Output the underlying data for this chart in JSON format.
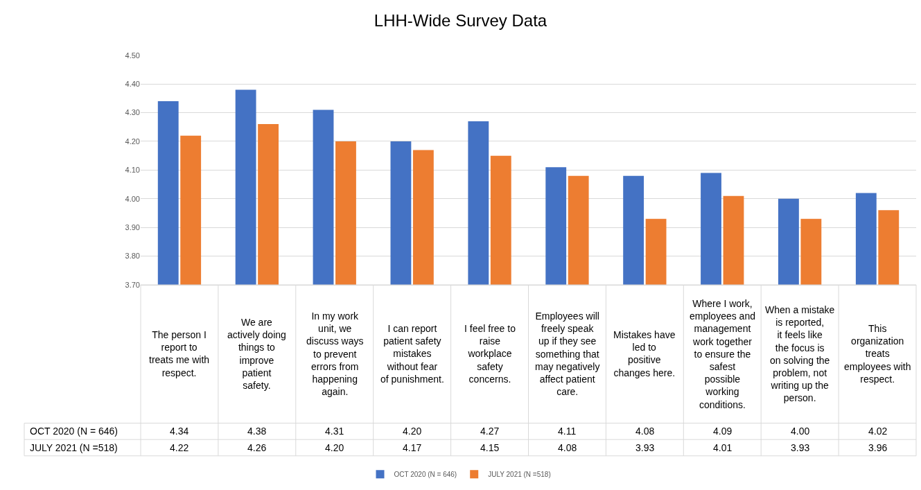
{
  "chart_data": {
    "type": "bar",
    "title": "LHH-Wide Survey Data",
    "categories": [
      "The person I report to treats me with respect.",
      "We are actively doing things to improve patient safety.",
      "In my work unit, we discuss ways to prevent errors from happening again.",
      "I can report patient safety mistakes without fear of punishment.",
      "I feel free to raise workplace safety concerns.",
      "Employees will freely speak up if they see something that may negatively affect patient care.",
      "Mistakes have led to positive changes here.",
      "Where I work, employees and management work together to ensure the safest possible working conditions.",
      "When a mistake is reported, it feels like the focus is on solving the problem, not writing up the person.",
      "This organization treats employees with respect."
    ],
    "series": [
      {
        "name": "OCT 2020 (N = 646)",
        "color": "#4472c4",
        "values": [
          4.34,
          4.38,
          4.31,
          4.2,
          4.27,
          4.11,
          4.08,
          4.09,
          4.0,
          4.02
        ],
        "value_labels": [
          "4.34",
          "4.38",
          "4.31",
          "4.20",
          "4.27",
          "4.11",
          "4.08",
          "4.09",
          "4.00",
          "4.02"
        ]
      },
      {
        "name": "JULY 2021 (N =518)",
        "color": "#ed7d31",
        "values": [
          4.22,
          4.26,
          4.2,
          4.17,
          4.15,
          4.08,
          3.93,
          4.01,
          3.93,
          3.96
        ],
        "value_labels": [
          "4.22",
          "4.26",
          "4.20",
          "4.17",
          "4.15",
          "4.08",
          "3.93",
          "4.01",
          "3.93",
          "3.96"
        ]
      }
    ],
    "ylim": [
      3.7,
      4.5
    ],
    "yticks": [
      {
        "value": 3.7,
        "label": "3.70"
      },
      {
        "value": 3.8,
        "label": "3.80"
      },
      {
        "value": 3.9,
        "label": "3.90"
      },
      {
        "value": 4.0,
        "label": "4.00"
      },
      {
        "value": 4.1,
        "label": "4.10"
      },
      {
        "value": 4.2,
        "label": "4.20"
      },
      {
        "value": 4.3,
        "label": "4.30"
      },
      {
        "value": 4.4,
        "label": "4.40"
      },
      {
        "value": 4.5,
        "label": "4.50"
      }
    ],
    "grid": "y",
    "legend": "bottom"
  }
}
